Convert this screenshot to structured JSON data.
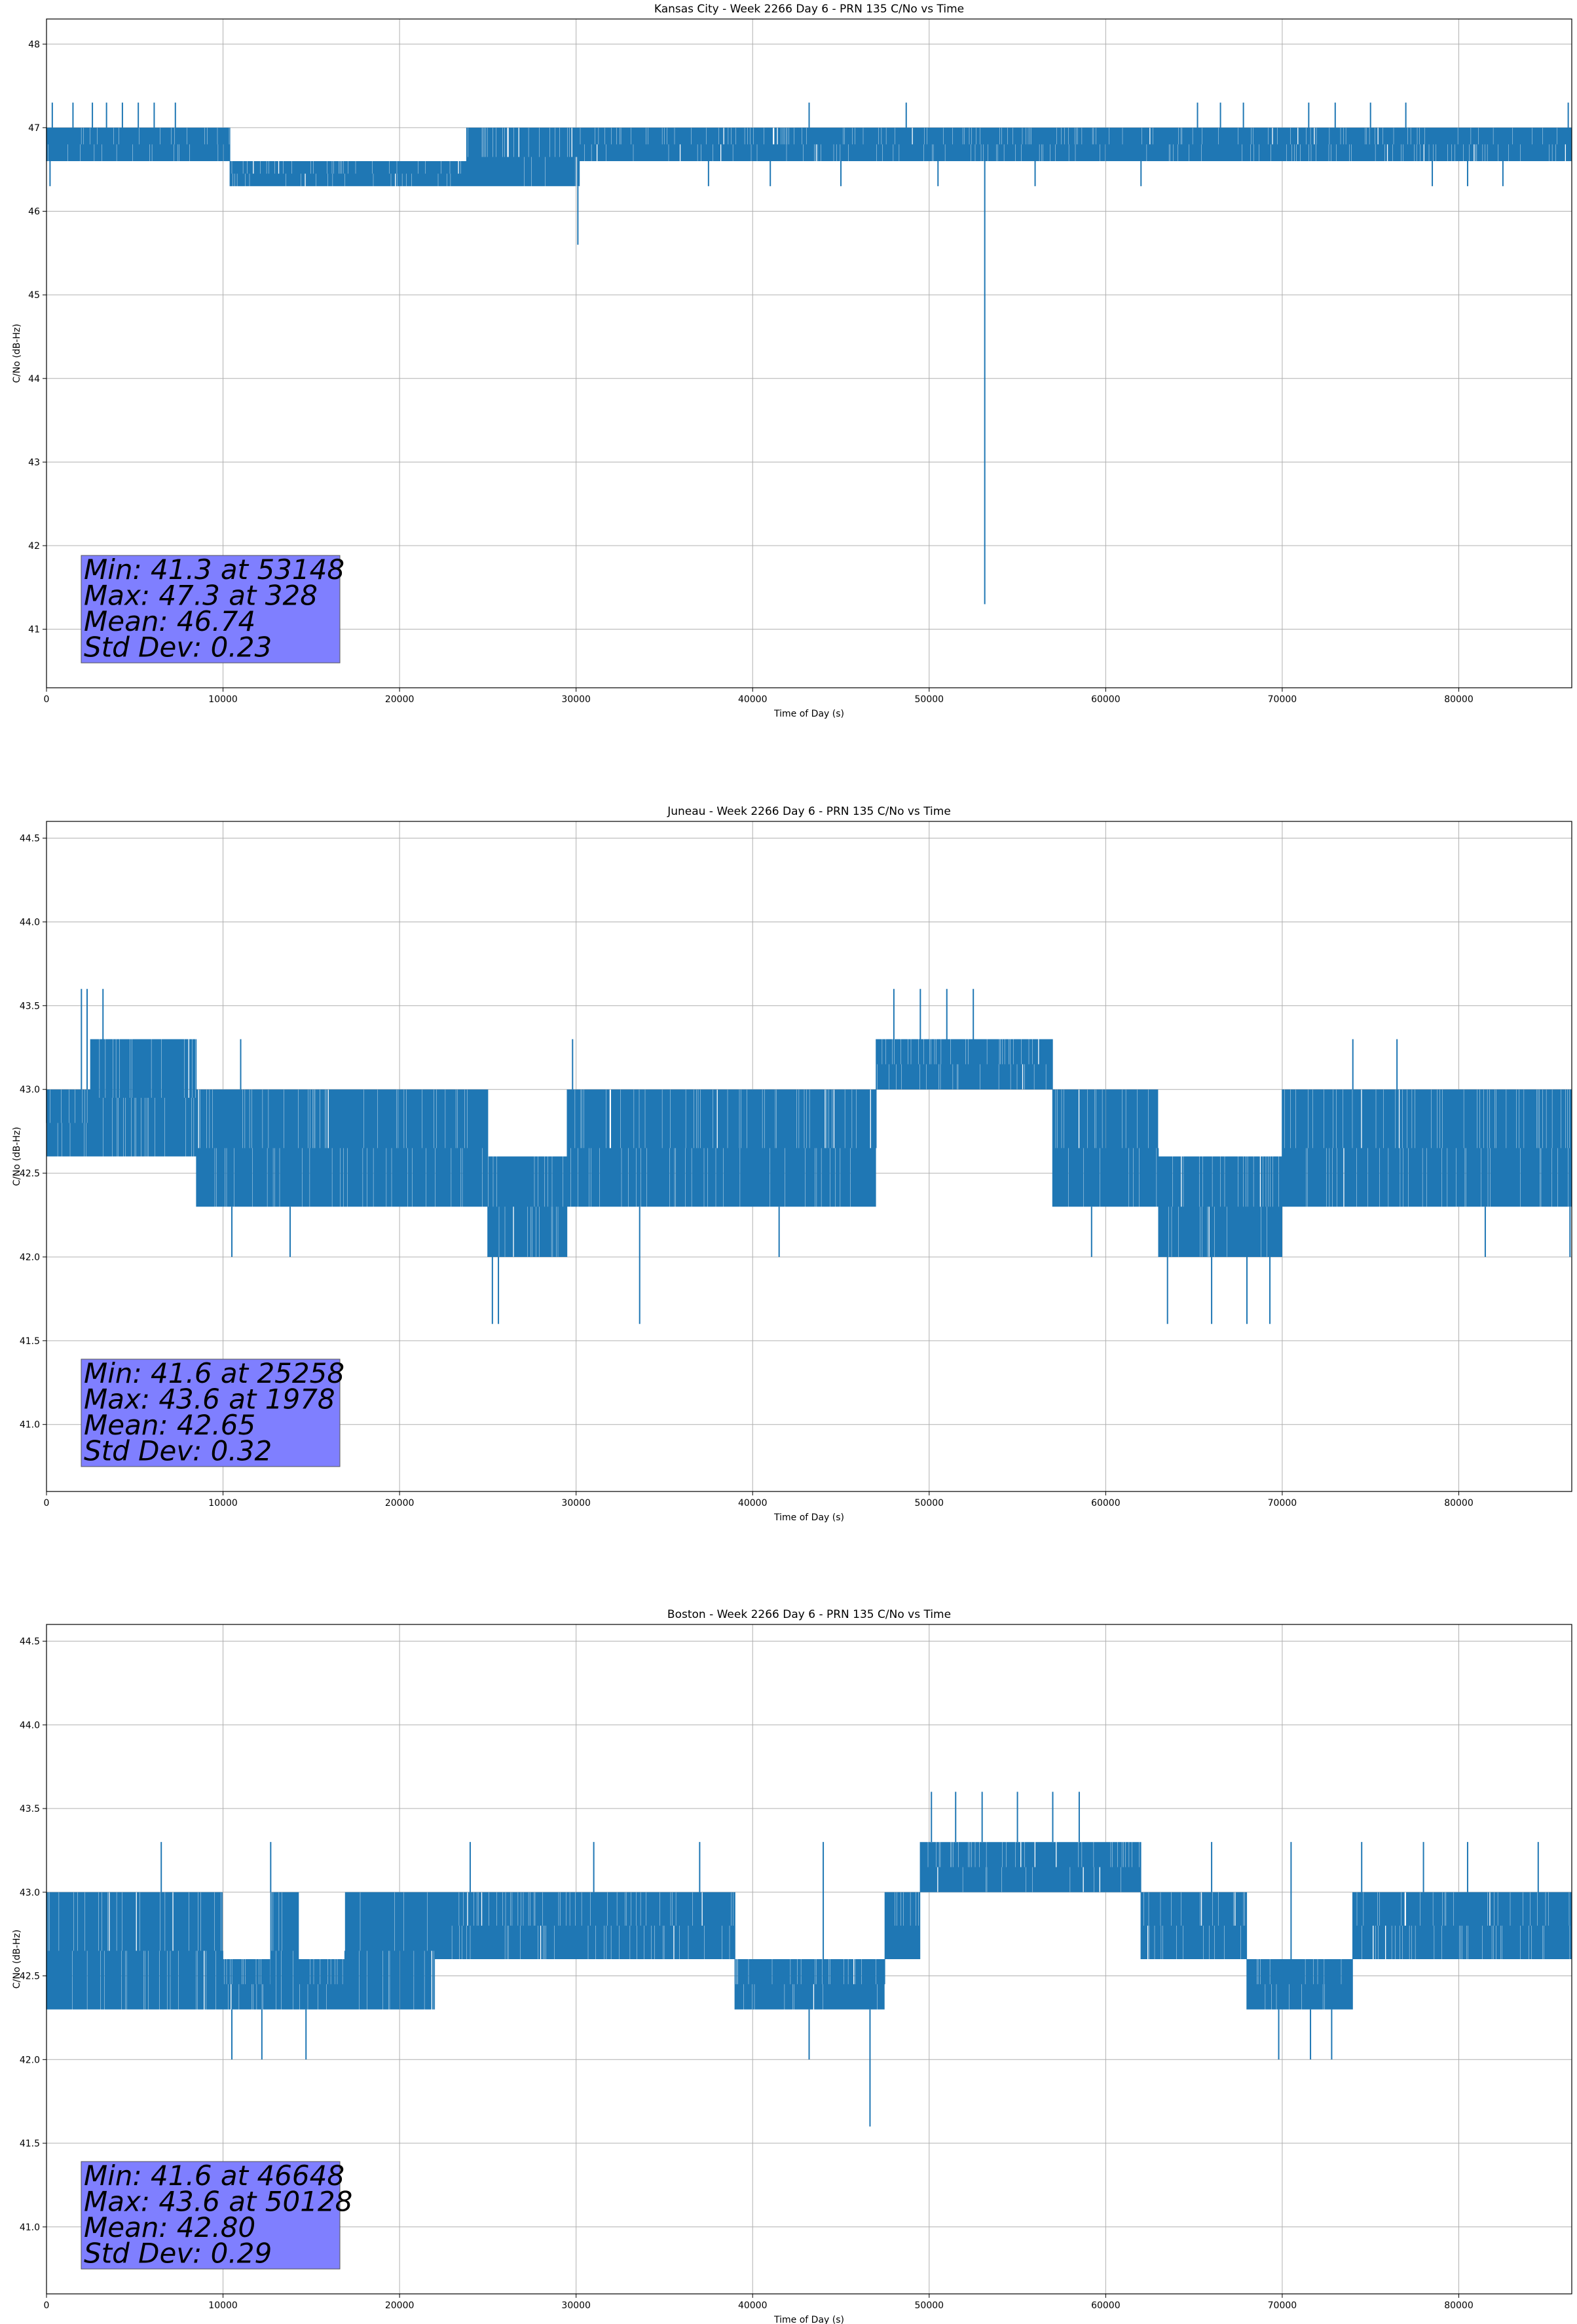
{
  "chart_data": [
    {
      "type": "line",
      "title": "Kansas City - Week 2266 Day 6 - PRN 135 C/No vs Time",
      "xlabel": "Time of Day (s)",
      "ylabel": "C/No (dB-Hz)",
      "xlim": [
        0,
        86400
      ],
      "ylim": [
        40.3,
        48.3
      ],
      "xticks": [
        0,
        10000,
        20000,
        30000,
        40000,
        50000,
        60000,
        70000,
        80000
      ],
      "yticks": [
        41,
        42,
        43,
        44,
        45,
        46,
        47,
        48
      ],
      "ytick_labels": [
        "41",
        "42",
        "43",
        "44",
        "45",
        "46",
        "47",
        "48"
      ],
      "grid": true,
      "color": "#1f77b4",
      "series": [
        {
          "segments": [
            {
              "start": 0,
              "end": 10400,
              "high": 47.0,
              "low": 46.6
            },
            {
              "start": 10400,
              "end": 23800,
              "high": 46.6,
              "low": 46.3
            },
            {
              "start": 23800,
              "end": 30200,
              "high": 47.0,
              "low": 46.3
            },
            {
              "start": 30200,
              "end": 86400,
              "high": 47.0,
              "low": 46.6
            }
          ],
          "spikes": [
            {
              "x": 328,
              "y": 47.3
            },
            {
              "x": 1500,
              "y": 47.3
            },
            {
              "x": 2600,
              "y": 47.3
            },
            {
              "x": 3400,
              "y": 47.3
            },
            {
              "x": 4300,
              "y": 47.3
            },
            {
              "x": 5200,
              "y": 47.3
            },
            {
              "x": 6100,
              "y": 47.3
            },
            {
              "x": 7300,
              "y": 47.3
            },
            {
              "x": 43200,
              "y": 47.3
            },
            {
              "x": 48700,
              "y": 47.3
            },
            {
              "x": 65200,
              "y": 47.3
            },
            {
              "x": 66500,
              "y": 47.3
            },
            {
              "x": 67800,
              "y": 47.3
            },
            {
              "x": 71500,
              "y": 47.3
            },
            {
              "x": 73000,
              "y": 47.3
            },
            {
              "x": 75000,
              "y": 47.3
            },
            {
              "x": 77000,
              "y": 47.3
            },
            {
              "x": 86200,
              "y": 47.3
            },
            {
              "x": 30100,
              "y": 45.6
            },
            {
              "x": 53148,
              "y": 41.3
            },
            {
              "x": 200,
              "y": 46.3
            },
            {
              "x": 37500,
              "y": 46.3
            },
            {
              "x": 41000,
              "y": 46.3
            },
            {
              "x": 45000,
              "y": 46.3
            },
            {
              "x": 50500,
              "y": 46.3
            },
            {
              "x": 56000,
              "y": 46.3
            },
            {
              "x": 62000,
              "y": 46.3
            },
            {
              "x": 78500,
              "y": 46.3
            },
            {
              "x": 80500,
              "y": 46.3
            },
            {
              "x": 82500,
              "y": 46.3
            }
          ]
        }
      ],
      "stats": [
        "Min: 41.3 at 53148",
        "Max: 47.3 at 328",
        "Mean: 46.74",
        "Std Dev: 0.23"
      ]
    },
    {
      "type": "line",
      "title": "Juneau - Week 2266 Day 6 - PRN 135 C/No vs Time",
      "xlabel": "Time of Day (s)",
      "ylabel": "C/No (dB-Hz)",
      "xlim": [
        0,
        86400
      ],
      "ylim": [
        40.6,
        44.6
      ],
      "xticks": [
        0,
        10000,
        20000,
        30000,
        40000,
        50000,
        60000,
        70000,
        80000
      ],
      "yticks": [
        41.0,
        41.5,
        42.0,
        42.5,
        43.0,
        43.5,
        44.0,
        44.5
      ],
      "ytick_labels": [
        "41.0",
        "41.5",
        "42.0",
        "42.5",
        "43.0",
        "43.5",
        "44.0",
        "44.5"
      ],
      "grid": true,
      "color": "#1f77b4",
      "series": [
        {
          "segments": [
            {
              "start": 0,
              "end": 2500,
              "high": 43.0,
              "low": 42.6
            },
            {
              "start": 2500,
              "end": 8500,
              "high": 43.3,
              "low": 42.6
            },
            {
              "start": 8500,
              "end": 25000,
              "high": 43.0,
              "low": 42.3
            },
            {
              "start": 25000,
              "end": 29500,
              "high": 42.6,
              "low": 42.0
            },
            {
              "start": 29500,
              "end": 47000,
              "high": 43.0,
              "low": 42.3
            },
            {
              "start": 47000,
              "end": 57000,
              "high": 43.3,
              "low": 43.0
            },
            {
              "start": 57000,
              "end": 63000,
              "high": 43.0,
              "low": 42.3
            },
            {
              "start": 63000,
              "end": 70000,
              "high": 42.6,
              "low": 42.0
            },
            {
              "start": 70000,
              "end": 86400,
              "high": 43.0,
              "low": 42.3
            }
          ],
          "spikes": [
            {
              "x": 1978,
              "y": 43.6
            },
            {
              "x": 2300,
              "y": 43.6
            },
            {
              "x": 3200,
              "y": 43.6
            },
            {
              "x": 48000,
              "y": 43.6
            },
            {
              "x": 49500,
              "y": 43.6
            },
            {
              "x": 51000,
              "y": 43.6
            },
            {
              "x": 52500,
              "y": 43.6
            },
            {
              "x": 25258,
              "y": 41.6
            },
            {
              "x": 25600,
              "y": 41.6
            },
            {
              "x": 33600,
              "y": 41.6
            },
            {
              "x": 63500,
              "y": 41.6
            },
            {
              "x": 66000,
              "y": 41.6
            },
            {
              "x": 68000,
              "y": 41.6
            },
            {
              "x": 69300,
              "y": 41.6
            },
            {
              "x": 10500,
              "y": 42.0
            },
            {
              "x": 13800,
              "y": 42.0
            },
            {
              "x": 41500,
              "y": 42.0
            },
            {
              "x": 59200,
              "y": 42.0
            },
            {
              "x": 81500,
              "y": 42.0
            },
            {
              "x": 86300,
              "y": 42.0
            },
            {
              "x": 11000,
              "y": 43.3
            },
            {
              "x": 29800,
              "y": 43.3
            },
            {
              "x": 74000,
              "y": 43.3
            },
            {
              "x": 76500,
              "y": 43.3
            }
          ]
        }
      ],
      "stats": [
        "Min: 41.6 at 25258",
        "Max: 43.6 at 1978",
        "Mean: 42.65",
        "Std Dev: 0.32"
      ]
    },
    {
      "type": "line",
      "title": "Boston - Week 2266 Day 6 - PRN 135 C/No vs Time",
      "xlabel": "Time of Day (s)",
      "ylabel": "C/No (dB-Hz)",
      "xlim": [
        0,
        86400
      ],
      "ylim": [
        40.6,
        44.6
      ],
      "xticks": [
        0,
        10000,
        20000,
        30000,
        40000,
        50000,
        60000,
        70000,
        80000
      ],
      "yticks": [
        41.0,
        41.5,
        42.0,
        42.5,
        43.0,
        43.5,
        44.0,
        44.5
      ],
      "ytick_labels": [
        "41.0",
        "41.5",
        "42.0",
        "42.5",
        "43.0",
        "43.5",
        "44.0",
        "44.5"
      ],
      "grid": true,
      "color": "#1f77b4",
      "series": [
        {
          "segments": [
            {
              "start": 0,
              "end": 10000,
              "high": 43.0,
              "low": 42.3
            },
            {
              "start": 10000,
              "end": 12700,
              "high": 42.6,
              "low": 42.3
            },
            {
              "start": 12700,
              "end": 14300,
              "high": 43.0,
              "low": 42.3
            },
            {
              "start": 14300,
              "end": 16900,
              "high": 42.6,
              "low": 42.3
            },
            {
              "start": 16900,
              "end": 22000,
              "high": 43.0,
              "low": 42.3
            },
            {
              "start": 22000,
              "end": 39000,
              "high": 43.0,
              "low": 42.6
            },
            {
              "start": 39000,
              "end": 47500,
              "high": 42.6,
              "low": 42.3
            },
            {
              "start": 47500,
              "end": 49500,
              "high": 43.0,
              "low": 42.6
            },
            {
              "start": 49500,
              "end": 62000,
              "high": 43.3,
              "low": 43.0
            },
            {
              "start": 62000,
              "end": 68000,
              "high": 43.0,
              "low": 42.6
            },
            {
              "start": 68000,
              "end": 74000,
              "high": 42.6,
              "low": 42.3
            },
            {
              "start": 74000,
              "end": 86400,
              "high": 43.0,
              "low": 42.6
            }
          ],
          "spikes": [
            {
              "x": 50128,
              "y": 43.6
            },
            {
              "x": 51500,
              "y": 43.6
            },
            {
              "x": 53000,
              "y": 43.6
            },
            {
              "x": 55000,
              "y": 43.6
            },
            {
              "x": 57000,
              "y": 43.6
            },
            {
              "x": 58500,
              "y": 43.6
            },
            {
              "x": 46648,
              "y": 41.6
            },
            {
              "x": 10500,
              "y": 42.0
            },
            {
              "x": 12200,
              "y": 42.0
            },
            {
              "x": 14700,
              "y": 42.0
            },
            {
              "x": 43200,
              "y": 42.0
            },
            {
              "x": 69800,
              "y": 42.0
            },
            {
              "x": 71600,
              "y": 42.0
            },
            {
              "x": 72800,
              "y": 42.0
            },
            {
              "x": 6500,
              "y": 43.3
            },
            {
              "x": 12700,
              "y": 43.3
            },
            {
              "x": 24000,
              "y": 43.3
            },
            {
              "x": 31000,
              "y": 43.3
            },
            {
              "x": 37000,
              "y": 43.3
            },
            {
              "x": 44000,
              "y": 43.3
            },
            {
              "x": 66000,
              "y": 43.3
            },
            {
              "x": 70500,
              "y": 43.3
            },
            {
              "x": 74500,
              "y": 43.3
            },
            {
              "x": 78000,
              "y": 43.3
            },
            {
              "x": 80500,
              "y": 43.3
            },
            {
              "x": 84500,
              "y": 43.3
            }
          ]
        }
      ],
      "stats": [
        "Min: 41.6 at 46648",
        "Max: 43.6 at 50128",
        "Mean: 42.80",
        "Std Dev: 0.29"
      ]
    }
  ]
}
